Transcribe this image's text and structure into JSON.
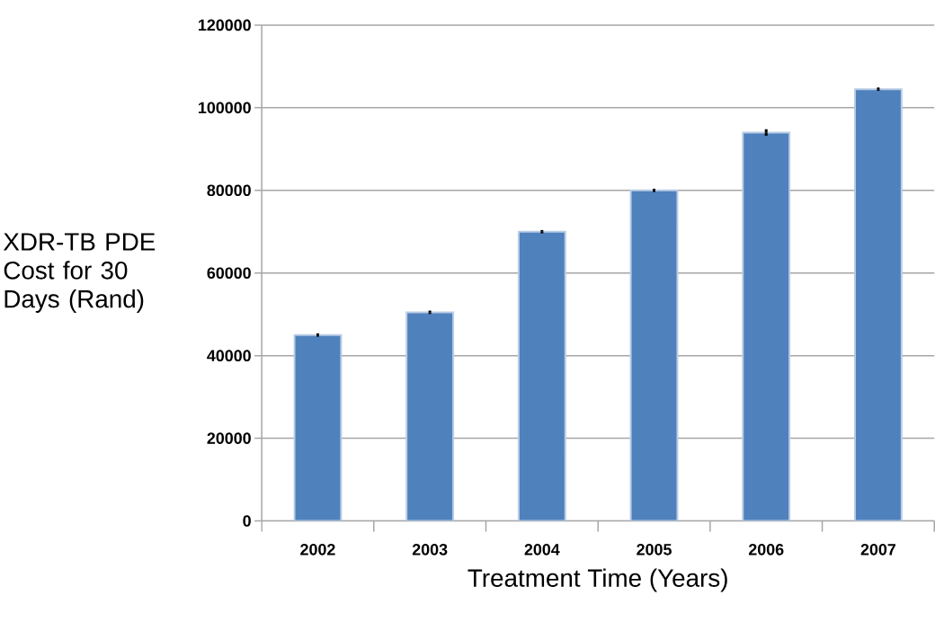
{
  "chart_data": {
    "type": "bar",
    "xlabel": "Treatment Time (Years)",
    "ylabel": "XDR-TB PDE Cost for 30 Days (Rand)",
    "categories": [
      "2002",
      "2003",
      "2004",
      "2005",
      "2006",
      "2007"
    ],
    "values": [
      45000,
      50500,
      70000,
      80000,
      94000,
      104500
    ],
    "errors": [
      400,
      400,
      400,
      400,
      800,
      400
    ],
    "color": "#4f81bd",
    "ylim": [
      0,
      120000
    ],
    "yticks": [
      0,
      20000,
      40000,
      60000,
      80000,
      100000,
      120000
    ],
    "grid": "y"
  }
}
